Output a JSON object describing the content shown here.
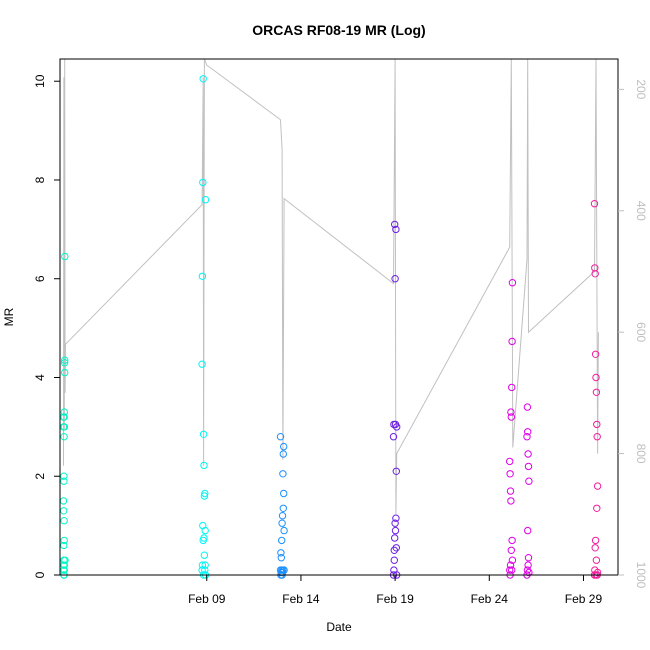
{
  "chart_data": {
    "type": "scatter",
    "title": "ORCAS RF08-19 MR (Log)",
    "xlabel": "Date",
    "ylabel": "MR",
    "x_unit": "date",
    "xlim": [
      "2016-02-01T05:00",
      "2016-03-01T20:00"
    ],
    "ylim": [
      0,
      10.45
    ],
    "x_ticks": [
      {
        "date": "2016-02-09",
        "label": "Feb 09"
      },
      {
        "date": "2016-02-14",
        "label": "Feb 14"
      },
      {
        "date": "2016-02-19",
        "label": "Feb 19"
      },
      {
        "date": "2016-02-24",
        "label": "Feb 24"
      },
      {
        "date": "2016-02-29",
        "label": "Feb 29"
      }
    ],
    "y_ticks": [
      0,
      2,
      4,
      6,
      8,
      10
    ],
    "y2_ticks": [
      200,
      400,
      600,
      800,
      1000
    ],
    "y2lim": [
      1000,
      150
    ],
    "y2_color": "#bfbfbf",
    "grid": false,
    "legend": "none",
    "series": [
      {
        "color": "#00f5c8",
        "x": [
          "2016-02-01T09:30",
          "2016-02-01T09:30",
          "2016-02-01T09:30",
          "2016-02-01T09:40",
          "2016-02-01T09:40",
          "2016-02-01T09:50",
          "2016-02-01T09:50",
          "2016-02-01T10:00",
          "2016-02-01T10:00",
          "2016-02-01T10:00",
          "2016-02-01T10:00",
          "2016-02-01T10:10",
          "2016-02-01T10:10",
          "2016-02-01T10:10",
          "2016-02-01T10:20",
          "2016-02-01T10:20",
          "2016-02-01T10:30",
          "2016-02-01T10:30",
          "2016-02-01T10:40",
          "2016-02-01T10:40",
          "2016-02-01T10:50",
          "2016-02-01T11:00",
          "2016-02-01T11:00",
          "2016-02-01T11:10",
          "2016-02-01T11:20"
        ],
        "y": [
          3.0,
          3.2,
          1.5,
          1.3,
          0.1,
          0.6,
          0.2,
          1.9,
          2.0,
          0.3,
          0.0,
          2.8,
          1.1,
          0.0,
          3.2,
          0.7,
          3.3,
          0.1,
          3.0,
          0.2,
          4.3,
          4.35,
          4.1,
          6.45,
          0.3
        ]
      },
      {
        "color": "#00f5f5",
        "x": [
          "2016-02-08T18:00",
          "2016-02-08T18:00",
          "2016-02-08T18:30",
          "2016-02-08T18:30",
          "2016-02-08T19:00",
          "2016-02-08T19:00",
          "2016-02-08T19:30",
          "2016-02-08T19:30",
          "2016-02-08T20:00",
          "2016-02-08T20:00",
          "2016-02-08T20:30",
          "2016-02-08T20:30",
          "2016-02-08T21:00",
          "2016-02-08T21:00",
          "2016-02-08T21:30",
          "2016-02-08T21:30",
          "2016-02-08T22:00",
          "2016-02-08T22:00",
          "2016-02-08T22:30",
          "2016-02-08T22:30"
        ],
        "y": [
          4.27,
          0.1,
          6.05,
          0.2,
          7.95,
          1.0,
          10.05,
          0.7,
          2.85,
          0.0,
          2.22,
          0.75,
          1.6,
          0.4,
          1.65,
          0.1,
          0.9,
          0.2,
          7.6,
          0.0
        ]
      },
      {
        "color": "#1e90ff",
        "x": [
          "2016-02-12T22:00",
          "2016-02-12T22:00",
          "2016-02-12T22:30",
          "2016-02-12T22:30",
          "2016-02-12T23:00",
          "2016-02-12T23:00",
          "2016-02-12T23:30",
          "2016-02-12T23:30",
          "2016-02-13T00:00",
          "2016-02-13T00:00",
          "2016-02-13T00:30",
          "2016-02-13T00:30",
          "2016-02-13T01:00",
          "2016-02-13T01:00",
          "2016-02-13T01:30",
          "2016-02-13T01:30",
          "2016-02-13T02:00",
          "2016-02-13T02:00",
          "2016-02-13T02:30",
          "2016-02-13T02:30"
        ],
        "y": [
          2.8,
          0.1,
          0.45,
          0.0,
          0.35,
          0.05,
          0.7,
          0.1,
          1.05,
          0.0,
          1.2,
          0.05,
          2.05,
          0.1,
          2.45,
          1.35,
          2.6,
          1.65,
          0.9,
          0.1
        ]
      },
      {
        "color": "#6b1fe0",
        "x": [
          "2016-02-18T22:00",
          "2016-02-18T22:00",
          "2016-02-18T22:30",
          "2016-02-18T22:30",
          "2016-02-18T23:00",
          "2016-02-18T23:00",
          "2016-02-18T23:30",
          "2016-02-18T23:30",
          "2016-02-19T00:00",
          "2016-02-19T00:00",
          "2016-02-19T00:30",
          "2016-02-19T00:30",
          "2016-02-19T01:00",
          "2016-02-19T01:00",
          "2016-02-19T01:30",
          "2016-02-19T01:30",
          "2016-02-19T02:00",
          "2016-02-19T02:00"
        ],
        "y": [
          2.8,
          0.0,
          3.05,
          0.1,
          0.5,
          0.3,
          7.1,
          0.75,
          6.0,
          1.05,
          3.05,
          0.9,
          7.0,
          1.15,
          2.1,
          0.55,
          3.0,
          0.0
        ]
      },
      {
        "color": "#e000e8",
        "x": [
          "2016-02-25T02:00",
          "2016-02-25T02:00",
          "2016-02-25T02:30",
          "2016-02-25T02:30",
          "2016-02-25T03:00",
          "2016-02-25T03:00",
          "2016-02-25T03:30",
          "2016-02-25T03:30",
          "2016-02-25T04:00",
          "2016-02-25T04:00",
          "2016-02-25T04:30",
          "2016-02-25T04:30",
          "2016-02-25T05:00",
          "2016-02-25T05:00",
          "2016-02-25T05:30",
          "2016-02-25T05:30",
          "2016-02-26T00:00",
          "2016-02-26T00:00",
          "2016-02-26T00:30",
          "2016-02-26T00:30",
          "2016-02-26T01:00",
          "2016-02-26T01:00",
          "2016-02-26T01:30",
          "2016-02-26T01:30",
          "2016-02-26T02:00",
          "2016-02-26T02:00",
          "2016-02-26T02:30",
          "2016-02-26T02:30"
        ],
        "y": [
          2.3,
          0.1,
          2.05,
          0.0,
          1.7,
          0.2,
          3.3,
          1.5,
          3.2,
          0.5,
          3.8,
          0.1,
          4.73,
          0.7,
          5.92,
          0.3,
          2.8,
          0.0,
          3.4,
          0.1,
          2.9,
          0.9,
          2.45,
          0.2,
          2.2,
          0.35,
          1.9,
          0.05
        ]
      },
      {
        "color": "#f01e9c",
        "x": [
          "2016-02-29T14:00",
          "2016-02-29T14:00",
          "2016-02-29T14:30",
          "2016-02-29T14:30",
          "2016-02-29T15:00",
          "2016-02-29T15:00",
          "2016-02-29T15:30",
          "2016-02-29T15:30",
          "2016-02-29T16:00",
          "2016-02-29T16:00",
          "2016-02-29T16:30",
          "2016-02-29T16:30",
          "2016-02-29T17:00",
          "2016-02-29T17:00",
          "2016-02-29T17:30",
          "2016-02-29T17:30",
          "2016-02-29T18:00",
          "2016-02-29T18:00"
        ],
        "y": [
          7.52,
          0.0,
          6.22,
          0.1,
          6.1,
          0.55,
          4.47,
          0.7,
          4.0,
          0.0,
          3.7,
          0.3,
          3.05,
          1.35,
          2.8,
          0.0,
          1.8,
          0.05
        ]
      }
    ],
    "pressure_trace": {
      "color": "#c0c0c0",
      "axis": "y2",
      "x": [
        "2016-02-01T09:30",
        "2016-02-01T10:00",
        "2016-02-01T10:30",
        "2016-02-01T11:00",
        "2016-02-01T11:30",
        "2016-02-01T12:00",
        "2016-02-08T18:00",
        "2016-02-08T19:30",
        "2016-02-08T20:00",
        "2016-02-08T21:00",
        "2016-02-09T00:00",
        "2016-02-12T22:00",
        "2016-02-13T00:00",
        "2016-02-13T01:00",
        "2016-02-13T02:30",
        "2016-02-18T22:00",
        "2016-02-19T00:00",
        "2016-02-19T01:00",
        "2016-02-19T02:00",
        "2016-02-25T02:00",
        "2016-02-25T04:00",
        "2016-02-25T06:00",
        "2016-02-26T00:00",
        "2016-02-26T01:00",
        "2016-02-26T02:00",
        "2016-02-29T14:00",
        "2016-02-29T16:00",
        "2016-02-29T18:00",
        "2016-02-29T19:00"
      ],
      "y": [
        820,
        180,
        760,
        150,
        700,
        620,
        390,
        180,
        820,
        150,
        160,
        250,
        300,
        810,
        380,
        520,
        150,
        900,
        800,
        460,
        150,
        790,
        480,
        150,
        600,
        500,
        150,
        800,
        600
      ]
    }
  }
}
